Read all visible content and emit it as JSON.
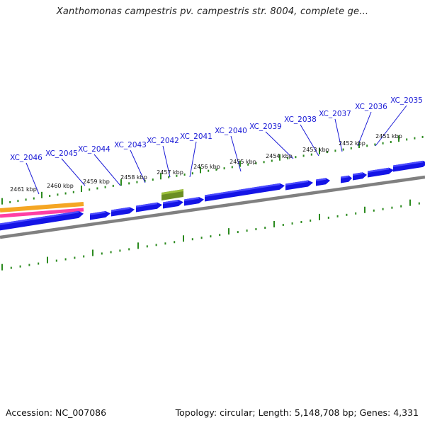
{
  "title": "Xanthomonas campestris pv. campestris str. 8004, complete ge...",
  "footer": {
    "accession": "Accession: NC_007086",
    "stats": "Topology: circular; Length: 5,148,708 bp; Genes: 4,331"
  },
  "colors": {
    "gene": "#1414e6",
    "gene_label": "#1a1ad6",
    "backbone": "#808080",
    "tick": "#2b8a1e",
    "highlight_feature": "#6b8e23",
    "orange_track": "#f5a623",
    "pink_track": "#ff3fa4"
  },
  "gene_labels": [
    "XC_2046",
    "XC_2045",
    "XC_2044",
    "XC_2043",
    "XC_2042",
    "XC_2041",
    "XC_2040",
    "XC_2039",
    "XC_2038",
    "XC_2037",
    "XC_2036",
    "XC_2035"
  ],
  "tick_labels": [
    "2461 kbp",
    "2460 kbp",
    "2459 kbp",
    "2458 kbp",
    "2457 kbp",
    "2456 kbp",
    "2455 kbp",
    "2454 kbp",
    "2453 kbp",
    "2452 kbp",
    "2451 kbp"
  ]
}
